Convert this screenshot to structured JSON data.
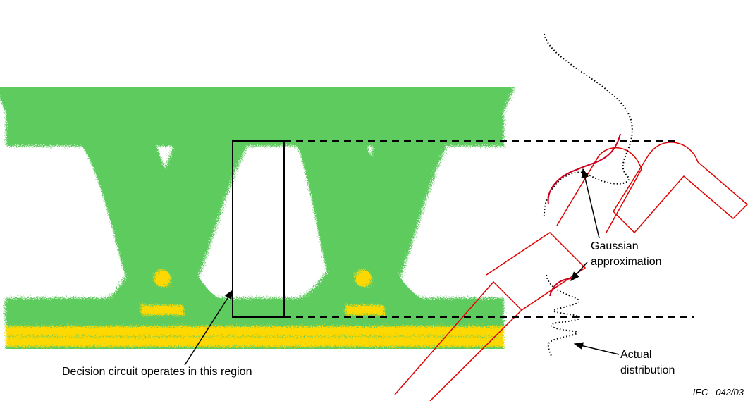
{
  "annotations": {
    "decision_region": "Decision circuit operates in this region",
    "gaussian": [
      "Gaussian",
      "approximation"
    ],
    "actual": [
      "Actual",
      "distribution"
    ]
  },
  "figure_id": "IEC   042/03"
}
